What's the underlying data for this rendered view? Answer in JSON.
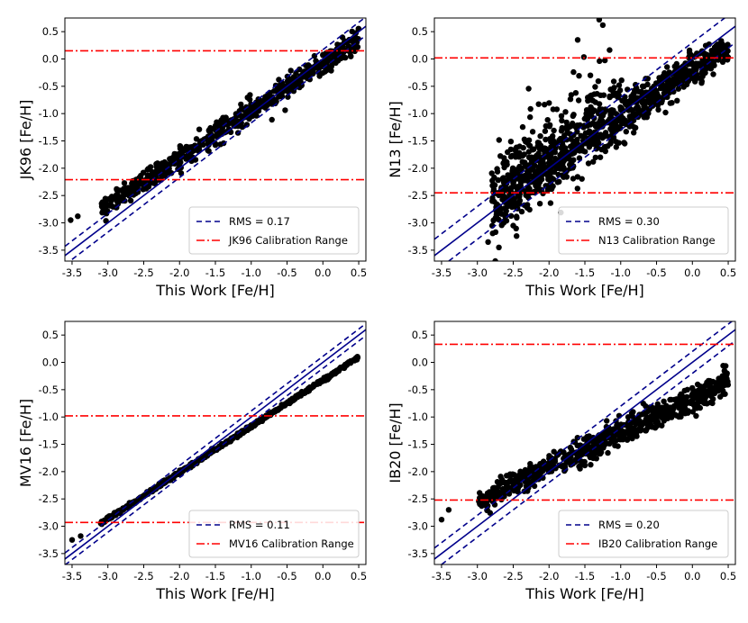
{
  "chart_data": [
    {
      "type": "scatter",
      "xlabel": "This Work [Fe/H]",
      "ylabel": "JK96 [Fe/H]",
      "xlim": [
        -3.6,
        0.6
      ],
      "ylim": [
        -3.7,
        0.75
      ],
      "xticks": [
        "-3.5",
        "-3.0",
        "-2.5",
        "-2.0",
        "-1.5",
        "-1.0",
        "-0.5",
        "0.0",
        "0.5"
      ],
      "yticks": [
        "-3.5",
        "-3.0",
        "-2.5",
        "-2.0",
        "-1.5",
        "-1.0",
        "-0.5",
        "0.0",
        "0.5"
      ],
      "one_to_one": true,
      "rms": 0.17,
      "calibration_range": [
        -2.21,
        0.15
      ],
      "legend": {
        "location": "lower-right",
        "rms_label": "RMS = 0.17",
        "cal_label": "JK96 Calibration Range"
      },
      "trend": {
        "x0": -3.1,
        "x1": 0.5,
        "y0": -2.75,
        "y1": 0.35,
        "spread": 0.1
      },
      "outliers": [
        [
          -3.52,
          -2.95
        ],
        [
          -3.42,
          -2.88
        ],
        [
          -2.6,
          -2.35
        ],
        [
          0.5,
          0.55
        ]
      ],
      "n_points": 650
    },
    {
      "type": "scatter",
      "xlabel": "This Work [Fe/H]",
      "ylabel": "N13 [Fe/H]",
      "xlim": [
        -3.6,
        0.6
      ],
      "ylim": [
        -3.7,
        0.75
      ],
      "xticks": [
        "-3.5",
        "-3.0",
        "-2.5",
        "-2.0",
        "-1.5",
        "-1.0",
        "-0.5",
        "0.0",
        "0.5"
      ],
      "yticks": [
        "-3.5",
        "-3.0",
        "-2.5",
        "-2.0",
        "-1.5",
        "-1.0",
        "-0.5",
        "0.0",
        "0.5"
      ],
      "one_to_one": true,
      "rms": 0.3,
      "calibration_range": [
        -2.45,
        0.02
      ],
      "legend": {
        "location": "lower-right",
        "rms_label": "RMS = 0.30",
        "cal_label": "N13 Calibration Range"
      },
      "trend": {
        "x0": -2.8,
        "x1": 0.5,
        "y0": -2.65,
        "y1": 0.25,
        "spread": 0.2
      },
      "outliers": [
        [
          -1.3,
          0.72
        ],
        [
          -1.25,
          0.62
        ],
        [
          -1.6,
          0.35
        ],
        [
          -2.75,
          -3.7
        ],
        [
          -2.85,
          -3.35
        ],
        [
          -2.5,
          -3.05
        ],
        [
          -2.7,
          -3.45
        ]
      ],
      "n_points": 900
    },
    {
      "type": "scatter",
      "xlabel": "This Work [Fe/H]",
      "ylabel": "MV16 [Fe/H]",
      "xlim": [
        -3.6,
        0.6
      ],
      "ylim": [
        -3.7,
        0.75
      ],
      "xticks": [
        "-3.5",
        "-3.0",
        "-2.5",
        "-2.0",
        "-1.5",
        "-1.0",
        "-0.5",
        "0.0",
        "0.5"
      ],
      "yticks": [
        "-3.5",
        "-3.0",
        "-2.5",
        "-2.0",
        "-1.5",
        "-1.0",
        "-0.5",
        "0.0",
        "0.5"
      ],
      "one_to_one": true,
      "rms": 0.11,
      "calibration_range": [
        -2.93,
        -0.98
      ],
      "legend": {
        "location": "lower-right",
        "rms_label": "RMS = 0.11",
        "cal_label": "MV16 Calibration Range"
      },
      "trend": {
        "x0": -3.1,
        "x1": 0.5,
        "y0": -2.95,
        "y1": 0.1,
        "spread": 0.015
      },
      "outliers": [
        [
          -3.5,
          -3.25
        ],
        [
          -3.38,
          -3.18
        ]
      ],
      "n_points": 600
    },
    {
      "type": "scatter",
      "xlabel": "This Work [Fe/H]",
      "ylabel": "IB20 [Fe/H]",
      "xlim": [
        -3.6,
        0.6
      ],
      "ylim": [
        -3.7,
        0.75
      ],
      "xticks": [
        "-3.5",
        "-3.0",
        "-2.5",
        "-2.0",
        "-1.5",
        "-1.0",
        "-0.5",
        "0.0",
        "0.5"
      ],
      "yticks": [
        "-3.5",
        "-3.0",
        "-2.5",
        "-2.0",
        "-1.5",
        "-1.0",
        "-0.5",
        "0.0",
        "0.5"
      ],
      "one_to_one": true,
      "rms": 0.2,
      "calibration_range": [
        -2.52,
        0.33
      ],
      "legend": {
        "location": "lower-right",
        "rms_label": "RMS = 0.20",
        "cal_label": "IB20 Calibration Range"
      },
      "trend": {
        "x0": -3.0,
        "x1": 0.5,
        "y0": -2.55,
        "y1": -0.35,
        "spread": 0.12
      },
      "outliers": [
        [
          -3.5,
          -2.88
        ],
        [
          -3.4,
          -2.7
        ],
        [
          0.42,
          -0.25
        ],
        [
          0.48,
          -0.3
        ]
      ],
      "n_points": 700
    }
  ]
}
